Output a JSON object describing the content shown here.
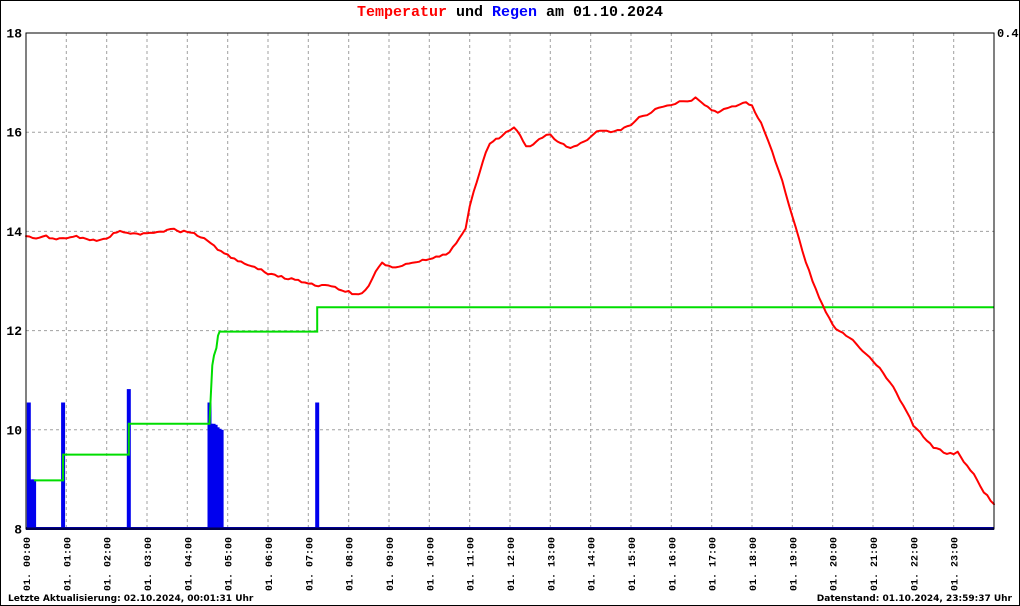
{
  "title": {
    "temperatur": "Temperatur",
    "und": " und ",
    "regen": "Regen",
    "date": " am 01.10.2024"
  },
  "footer": {
    "last_update": "Letzte Aktualisierung: 02.10.2024, 00:01:31 Uhr",
    "data_state": "Datenstand: 01.10.2024, 23:59:37 Uhr"
  },
  "chart_data": {
    "type": "line",
    "title": "Temperatur und Regen am 01.10.2024",
    "grid": true,
    "legend": "none",
    "x": {
      "range_hours": [
        0,
        24
      ],
      "tick_labels": [
        "01. 00:00",
        "01. 01:00",
        "01. 02:00",
        "01. 03:00",
        "01. 04:00",
        "01. 05:00",
        "01. 06:00",
        "01. 07:00",
        "01. 08:00",
        "01. 09:00",
        "01. 10:00",
        "01. 11:00",
        "01. 12:00",
        "01. 13:00",
        "01. 14:00",
        "01. 15:00",
        "01. 16:00",
        "01. 17:00",
        "01. 18:00",
        "01. 19:00",
        "01. 20:00",
        "01. 21:00",
        "01. 22:00",
        "01. 23:00"
      ]
    },
    "y_left": {
      "range": [
        8,
        18
      ],
      "ticks": [
        8,
        10,
        12,
        14,
        16,
        18
      ],
      "gridlines": [
        10,
        12,
        14,
        16
      ]
    },
    "y_right": {
      "range": [
        0,
        0.4
      ],
      "ticks": [
        "0.4"
      ]
    },
    "colors": {
      "temperature": "#ff0000",
      "rain_bars": "#0000ee",
      "rain_sum": "#00dd00",
      "baseline": "#000099",
      "grid": "#a0a0a0",
      "border": "#000000",
      "background": "#ffffff"
    },
    "series": [
      {
        "name": "temperature",
        "kind": "line",
        "axis": "left",
        "color": "#ff0000",
        "points": [
          [
            0,
            13.9
          ],
          [
            0.25,
            13.87
          ],
          [
            0.5,
            13.9
          ],
          [
            0.75,
            13.85
          ],
          [
            1,
            13.86
          ],
          [
            1.25,
            13.9
          ],
          [
            1.5,
            13.84
          ],
          [
            1.75,
            13.8
          ],
          [
            2,
            13.85
          ],
          [
            2.17,
            13.97
          ],
          [
            2.33,
            14.0
          ],
          [
            2.5,
            13.97
          ],
          [
            2.75,
            13.94
          ],
          [
            3,
            13.96
          ],
          [
            3.25,
            14.0
          ],
          [
            3.5,
            14.02
          ],
          [
            3.67,
            14.05
          ],
          [
            3.83,
            14.0
          ],
          [
            4,
            14.0
          ],
          [
            4.17,
            13.95
          ],
          [
            4.33,
            13.9
          ],
          [
            4.5,
            13.8
          ],
          [
            4.75,
            13.65
          ],
          [
            5,
            13.52
          ],
          [
            5.25,
            13.42
          ],
          [
            5.5,
            13.33
          ],
          [
            5.75,
            13.25
          ],
          [
            6,
            13.15
          ],
          [
            6.25,
            13.1
          ],
          [
            6.5,
            13.05
          ],
          [
            6.75,
            13.02
          ],
          [
            7,
            12.95
          ],
          [
            7.25,
            12.9
          ],
          [
            7.5,
            12.92
          ],
          [
            7.75,
            12.85
          ],
          [
            8,
            12.78
          ],
          [
            8.17,
            12.72
          ],
          [
            8.33,
            12.75
          ],
          [
            8.5,
            12.9
          ],
          [
            8.67,
            13.2
          ],
          [
            8.83,
            13.35
          ],
          [
            9,
            13.3
          ],
          [
            9.25,
            13.28
          ],
          [
            9.5,
            13.35
          ],
          [
            9.75,
            13.4
          ],
          [
            10,
            13.45
          ],
          [
            10.25,
            13.5
          ],
          [
            10.5,
            13.58
          ],
          [
            10.75,
            13.85
          ],
          [
            10.9,
            14.05
          ],
          [
            11,
            14.5
          ],
          [
            11.1,
            14.8
          ],
          [
            11.25,
            15.2
          ],
          [
            11.4,
            15.6
          ],
          [
            11.5,
            15.75
          ],
          [
            11.65,
            15.85
          ],
          [
            11.8,
            15.9
          ],
          [
            11.9,
            16.0
          ],
          [
            12,
            16.05
          ],
          [
            12.1,
            16.1
          ],
          [
            12.25,
            15.95
          ],
          [
            12.4,
            15.72
          ],
          [
            12.5,
            15.7
          ],
          [
            12.65,
            15.82
          ],
          [
            12.8,
            15.9
          ],
          [
            13,
            15.95
          ],
          [
            13.1,
            15.85
          ],
          [
            13.25,
            15.8
          ],
          [
            13.4,
            15.72
          ],
          [
            13.5,
            15.7
          ],
          [
            13.75,
            15.76
          ],
          [
            14,
            15.9
          ],
          [
            14.15,
            16.0
          ],
          [
            14.3,
            16.05
          ],
          [
            14.5,
            16.0
          ],
          [
            14.75,
            16.05
          ],
          [
            15,
            16.15
          ],
          [
            15.2,
            16.3
          ],
          [
            15.4,
            16.32
          ],
          [
            15.6,
            16.45
          ],
          [
            15.8,
            16.5
          ],
          [
            16,
            16.55
          ],
          [
            16.2,
            16.62
          ],
          [
            16.4,
            16.6
          ],
          [
            16.5,
            16.65
          ],
          [
            16.6,
            16.7
          ],
          [
            16.75,
            16.62
          ],
          [
            16.9,
            16.5
          ],
          [
            17,
            16.45
          ],
          [
            17.15,
            16.4
          ],
          [
            17.3,
            16.45
          ],
          [
            17.5,
            16.5
          ],
          [
            17.7,
            16.55
          ],
          [
            17.85,
            16.6
          ],
          [
            18,
            16.52
          ],
          [
            18.15,
            16.3
          ],
          [
            18.3,
            16.05
          ],
          [
            18.5,
            15.6
          ],
          [
            18.75,
            15.0
          ],
          [
            19,
            14.3
          ],
          [
            19.25,
            13.6
          ],
          [
            19.5,
            13.0
          ],
          [
            19.75,
            12.5
          ],
          [
            20,
            12.1
          ],
          [
            20.25,
            11.95
          ],
          [
            20.5,
            11.8
          ],
          [
            20.75,
            11.6
          ],
          [
            21,
            11.4
          ],
          [
            21.25,
            11.15
          ],
          [
            21.5,
            10.85
          ],
          [
            21.75,
            10.5
          ],
          [
            22,
            10.1
          ],
          [
            22.25,
            9.85
          ],
          [
            22.5,
            9.65
          ],
          [
            22.75,
            9.55
          ],
          [
            23,
            9.5
          ],
          [
            23.1,
            9.57
          ],
          [
            23.25,
            9.35
          ],
          [
            23.5,
            9.1
          ],
          [
            23.75,
            8.75
          ],
          [
            24,
            8.5
          ]
        ]
      },
      {
        "name": "rain-sum-step",
        "kind": "step",
        "axis": "left",
        "color": "#00dd00",
        "points": [
          [
            0.2,
            8.98
          ],
          [
            0.92,
            8.98
          ],
          [
            0.92,
            9.5
          ],
          [
            2.55,
            9.5
          ],
          [
            2.55,
            10.12
          ],
          [
            4.55,
            10.12
          ],
          [
            4.58,
            10.65
          ],
          [
            4.62,
            11.3
          ],
          [
            4.66,
            11.5
          ],
          [
            4.72,
            11.65
          ],
          [
            4.76,
            11.9
          ],
          [
            4.8,
            11.98
          ],
          [
            7.22,
            11.98
          ],
          [
            7.22,
            12.47
          ],
          [
            24,
            12.47
          ]
        ]
      },
      {
        "name": "rain-bars",
        "kind": "bars",
        "axis": "left",
        "color": "#0000ee",
        "points": [
          [
            0.07,
            10.55
          ],
          [
            0.14,
            9.0
          ],
          [
            0.2,
            9.0
          ],
          [
            0.92,
            10.55
          ],
          [
            2.55,
            10.82
          ],
          [
            4.55,
            10.55
          ],
          [
            4.6,
            10.12
          ],
          [
            4.65,
            10.12
          ],
          [
            4.7,
            10.1
          ],
          [
            4.75,
            10.05
          ],
          [
            4.8,
            10.02
          ],
          [
            4.85,
            10.0
          ],
          [
            7.22,
            10.55
          ]
        ]
      }
    ]
  }
}
